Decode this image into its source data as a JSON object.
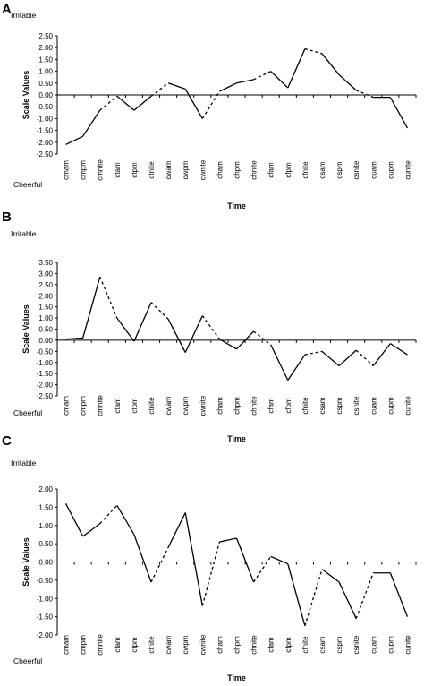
{
  "chart_data": [
    {
      "type": "line",
      "panel": "A",
      "top_label": "Irritable",
      "bottom_label": "Cheerful",
      "title": "",
      "xlabel": "Time",
      "ylabel": "Scale Values",
      "ylim": [
        -2.5,
        2.5
      ],
      "yticks": [
        "2.50",
        "2.00",
        "1.50",
        "1.00",
        "0.50",
        "0.00",
        "-0.50",
        "-1.00",
        "-1.50",
        "-2.00",
        "-2.50"
      ],
      "categories": [
        "cmam",
        "cmpm",
        "cmnite",
        "ctam",
        "ctpm",
        "ctnite",
        "cwam",
        "cwpm",
        "cwnite",
        "cham",
        "chpm",
        "chnite",
        "cfam",
        "cfpm",
        "cfnite",
        "csam",
        "cspm",
        "csnite",
        "cuam",
        "cupm",
        "cunite"
      ],
      "values": [
        -2.1,
        -1.75,
        -0.65,
        -0.05,
        -0.65,
        -0.05,
        0.5,
        0.25,
        -1.0,
        0.15,
        0.5,
        0.65,
        1.0,
        0.3,
        1.95,
        1.75,
        0.85,
        0.2,
        -0.1,
        -0.1,
        -1.4
      ],
      "segment_styles": [
        "solid",
        "solid",
        "dashed",
        "solid",
        "solid",
        "dashed",
        "solid",
        "solid",
        "dashed",
        "solid",
        "solid",
        "dashed",
        "solid",
        "solid",
        "dashed",
        "solid",
        "solid",
        "dashed",
        "solid",
        "solid"
      ]
    },
    {
      "type": "line",
      "panel": "B",
      "top_label": "Irritable",
      "bottom_label": "Cheerful",
      "title": "",
      "xlabel": "Time",
      "ylabel": "Scale Values",
      "ylim": [
        -2.5,
        3.5
      ],
      "yticks": [
        "3.50",
        "3.00",
        "2.50",
        "2.00",
        "1.50",
        "1.00",
        "0.50",
        "0.00",
        "-0.50",
        "-1.00",
        "-1.50",
        "-2.00",
        "-2.50"
      ],
      "categories": [
        "cmam",
        "cmpm",
        "cmnite",
        "ctam",
        "ctpm",
        "ctnite",
        "cwam",
        "cwpm",
        "cwnite",
        "cham",
        "chpm",
        "chnite",
        "cfam",
        "cfpm",
        "cfnite",
        "csam",
        "cspm",
        "csnite",
        "cuam",
        "cupm",
        "cunite"
      ],
      "values": [
        0.05,
        0.1,
        2.85,
        1.0,
        -0.05,
        1.7,
        0.95,
        -0.55,
        1.1,
        0.05,
        -0.4,
        0.4,
        -0.2,
        -1.8,
        -0.65,
        -0.5,
        -1.15,
        -0.45,
        -1.15,
        -0.15,
        -0.65
      ],
      "segment_styles": [
        "solid",
        "solid",
        "dashed",
        "solid",
        "solid",
        "dashed",
        "solid",
        "solid",
        "dashed",
        "solid",
        "solid",
        "dashed",
        "solid",
        "solid",
        "dashed",
        "solid",
        "solid",
        "dashed",
        "solid",
        "solid"
      ]
    },
    {
      "type": "line",
      "panel": "C",
      "top_label": "Irritable",
      "bottom_label": "Cheerful",
      "title": "",
      "xlabel": "Time",
      "ylabel": "Scale Values",
      "ylim": [
        -2.0,
        2.0
      ],
      "yticks": [
        "2.00",
        "1.50",
        "1.00",
        "0.50",
        "0.00",
        "-0.50",
        "-1.00",
        "-1.50",
        "-2.00"
      ],
      "categories": [
        "cmam",
        "cmpm",
        "cmnite",
        "ctam",
        "ctpm",
        "ctnite",
        "cwam",
        "cwpm",
        "cwnite",
        "cham",
        "chpm",
        "chnite",
        "cfam",
        "cfpm",
        "cfnite",
        "csam",
        "cspm",
        "csnite",
        "cuam",
        "cupm",
        "cunite"
      ],
      "values": [
        1.6,
        0.7,
        1.05,
        1.55,
        0.75,
        -0.55,
        0.4,
        1.35,
        -1.2,
        0.55,
        0.65,
        -0.55,
        0.15,
        -0.05,
        -1.75,
        -0.2,
        -0.55,
        -1.55,
        -0.3,
        -0.3,
        -1.5
      ],
      "segment_styles": [
        "solid",
        "solid",
        "dashed",
        "solid",
        "solid",
        "dashed",
        "solid",
        "solid",
        "dashed",
        "solid",
        "solid",
        "dashed",
        "solid",
        "solid",
        "dashed",
        "solid",
        "solid",
        "dashed",
        "solid",
        "solid"
      ]
    }
  ]
}
